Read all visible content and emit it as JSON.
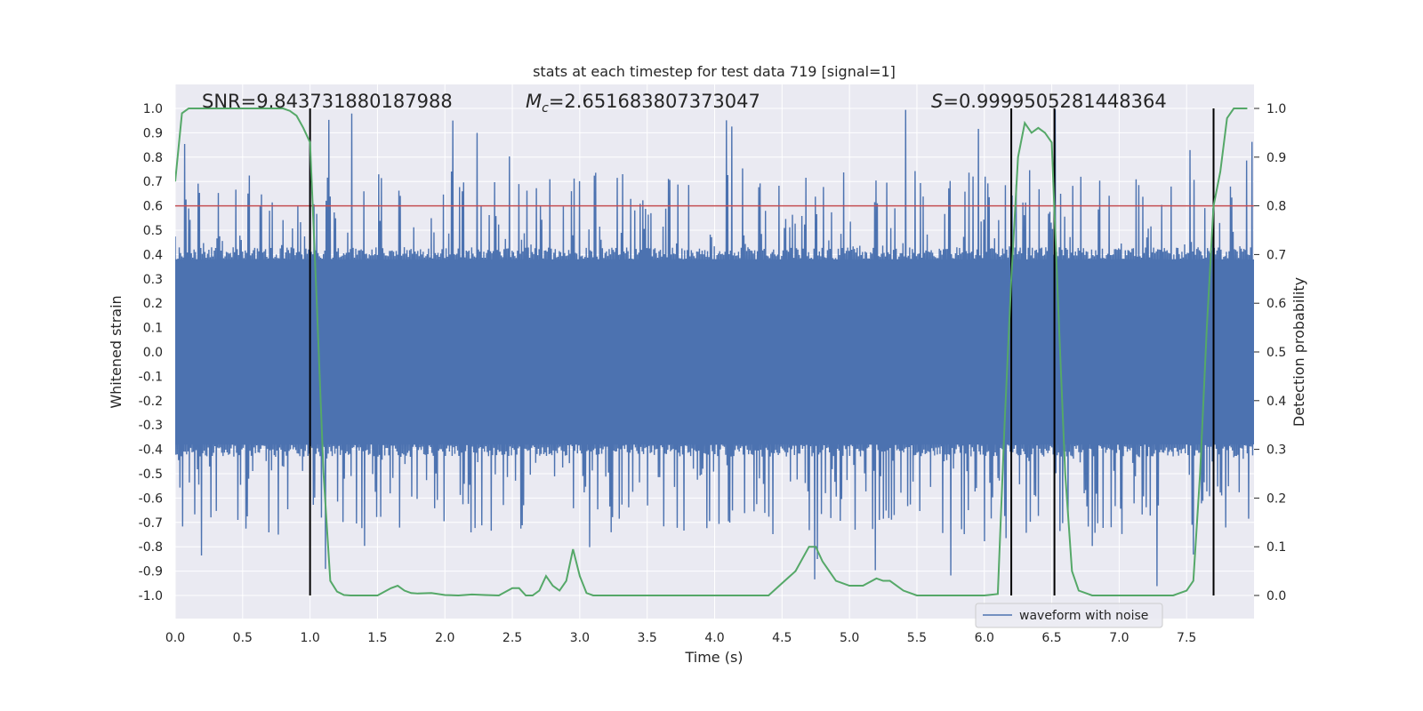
{
  "chart_data": {
    "type": "line",
    "title": "stats at each timestep for test data 719 [signal=1]",
    "xlabel": "Time (s)",
    "ylabel_left": "Whitened strain",
    "ylabel_right": "Detection probability",
    "xlim": [
      0.0,
      8.0
    ],
    "ylim_left": [
      -1.1,
      1.1
    ],
    "ylim_right": [
      -0.1,
      1.05
    ],
    "x_ticks": [
      "0.0",
      "0.5",
      "1.0",
      "1.5",
      "2.0",
      "2.5",
      "3.0",
      "3.5",
      "4.0",
      "4.5",
      "5.0",
      "5.5",
      "6.0",
      "6.5",
      "7.0",
      "7.5"
    ],
    "x_tick_values": [
      0.0,
      0.5,
      1.0,
      1.5,
      2.0,
      2.5,
      3.0,
      3.5,
      4.0,
      4.5,
      5.0,
      5.5,
      6.0,
      6.5,
      7.0,
      7.5
    ],
    "y_ticks_left": [
      "1.0",
      "0.9",
      "0.8",
      "0.7",
      "0.6",
      "0.5",
      "0.4",
      "0.3",
      "0.2",
      "0.1",
      "0.0",
      "-0.1",
      "-0.2",
      "-0.3",
      "-0.4",
      "-0.5",
      "-0.6",
      "-0.7",
      "-0.8",
      "-0.9",
      "-1.0"
    ],
    "y_tick_values_left": [
      1.0,
      0.9,
      0.8,
      0.7,
      0.6,
      0.5,
      0.4,
      0.3,
      0.2,
      0.1,
      0.0,
      -0.1,
      -0.2,
      -0.3,
      -0.4,
      -0.5,
      -0.6,
      -0.7,
      -0.8,
      -0.9,
      -1.0
    ],
    "y_ticks_right": [
      "1.0",
      "0.9",
      "0.8",
      "0.7",
      "0.6",
      "0.5",
      "0.4",
      "0.3",
      "0.2",
      "0.1",
      "0.0"
    ],
    "y_tick_values_right": [
      1.0,
      0.9,
      0.8,
      0.7,
      0.6,
      0.5,
      0.4,
      0.3,
      0.2,
      0.1,
      0.0
    ],
    "annotations": {
      "snr": "SNR=9.843731880187988",
      "mc_symbol": "M",
      "mc_sub": "c",
      "mc_value": "=2.651683807373047",
      "s_symbol": "S",
      "s_value": "=0.9999505281448364"
    },
    "threshold": {
      "value": 0.6,
      "color": "#c44e52"
    },
    "vertical_lines": [
      1.0,
      6.2,
      6.52,
      7.7
    ],
    "vertical_line_range": [
      -1.0,
      1.0
    ],
    "waveform": {
      "name": "waveform with noise",
      "color": "#4c72b0",
      "num_samples": 1600,
      "approx_envelope": [
        -1.0,
        1.0
      ]
    },
    "detection_probability": {
      "color": "#55a868",
      "x": [
        0.0,
        0.05,
        0.1,
        0.2,
        0.4,
        0.6,
        0.8,
        0.85,
        0.9,
        0.95,
        1.0,
        1.05,
        1.1,
        1.15,
        1.2,
        1.25,
        1.3,
        1.4,
        1.5,
        1.6,
        1.65,
        1.7,
        1.75,
        1.8,
        1.9,
        2.0,
        2.1,
        2.2,
        2.3,
        2.4,
        2.5,
        2.55,
        2.6,
        2.65,
        2.7,
        2.75,
        2.8,
        2.85,
        2.9,
        2.95,
        3.0,
        3.05,
        3.1,
        3.15,
        3.2,
        3.5,
        4.0,
        4.4,
        4.5,
        4.6,
        4.7,
        4.75,
        4.8,
        4.9,
        5.0,
        5.05,
        5.1,
        5.2,
        5.25,
        5.3,
        5.4,
        5.5,
        5.6,
        5.8,
        6.0,
        6.1,
        6.15,
        6.2,
        6.25,
        6.3,
        6.35,
        6.4,
        6.45,
        6.5,
        6.55,
        6.6,
        6.65,
        6.7,
        6.8,
        7.0,
        7.2,
        7.4,
        7.5,
        7.55,
        7.6,
        7.65,
        7.7,
        7.75,
        7.8,
        7.85,
        7.9,
        7.95
      ],
      "y": [
        0.85,
        0.99,
        1.0,
        1.0,
        1.0,
        1.0,
        1.0,
        0.995,
        0.985,
        0.96,
        0.93,
        0.6,
        0.25,
        0.03,
        0.008,
        0.001,
        0.0,
        0.0,
        0.0,
        0.015,
        0.02,
        0.01,
        0.005,
        0.004,
        0.005,
        0.001,
        0.0,
        0.002,
        0.001,
        0.0,
        0.015,
        0.015,
        0.0,
        0.0,
        0.01,
        0.04,
        0.02,
        0.01,
        0.03,
        0.095,
        0.04,
        0.005,
        0.0,
        0.0,
        0.0,
        0.0,
        0.0,
        0.0,
        0.025,
        0.05,
        0.1,
        0.1,
        0.07,
        0.03,
        0.02,
        0.02,
        0.02,
        0.035,
        0.03,
        0.03,
        0.01,
        0.0,
        0.0,
        0.0,
        0.0,
        0.003,
        0.35,
        0.65,
        0.9,
        0.97,
        0.95,
        0.96,
        0.95,
        0.93,
        0.58,
        0.25,
        0.05,
        0.01,
        0.0,
        0.0,
        0.0,
        0.0,
        0.01,
        0.03,
        0.25,
        0.55,
        0.8,
        0.87,
        0.98,
        1.0,
        1.0,
        1.0
      ]
    },
    "legend": {
      "label": "waveform with noise",
      "placement": "lower-right"
    }
  }
}
